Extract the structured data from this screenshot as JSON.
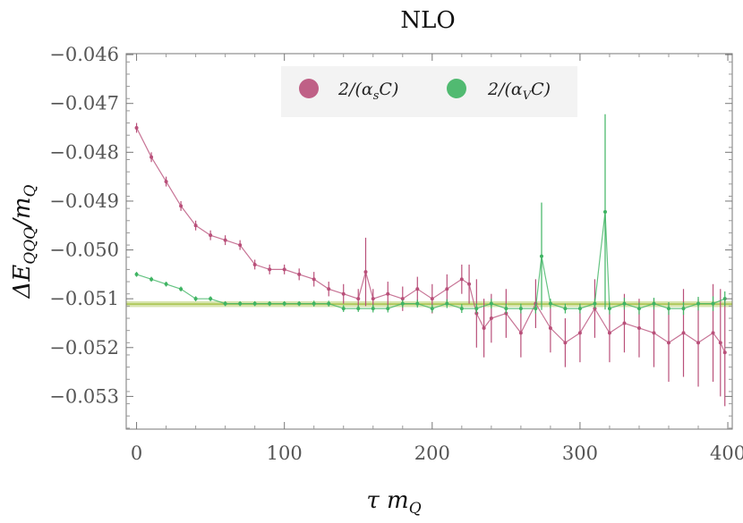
{
  "chart_data": {
    "type": "scatter",
    "title": "NLO",
    "xlabel": "τ m_Q",
    "xlabel_main": "τ m",
    "xlabel_sub": "Q",
    "ylabel": "ΔE_QQQ/m_Q",
    "ylabel_main": "ΔE",
    "ylabel_sub": "QQQ",
    "ylabel_tail": "/m",
    "ylabel_tail_sub": "Q",
    "xlim": [
      -7,
      403
    ],
    "ylim": [
      -0.05367,
      -0.04598
    ],
    "x_ticks": [
      0,
      100,
      200,
      300,
      400
    ],
    "x_tick_labels": [
      "0",
      "100",
      "200",
      "300",
      "400"
    ],
    "y_ticks": [
      -0.046,
      -0.047,
      -0.048,
      -0.049,
      -0.05,
      -0.051,
      -0.052,
      -0.053
    ],
    "y_tick_labels": [
      "−0.046",
      "−0.047",
      "−0.048",
      "−0.049",
      "−0.050",
      "−0.051",
      "−0.052",
      "−0.053"
    ],
    "legend_position": "top-center",
    "band": {
      "center": -0.05111,
      "half_width": 6e-05,
      "color": "#a7c34a"
    },
    "series": [
      {
        "name": "2/(α_s C)",
        "legend_main": "2/(α",
        "legend_sub": "s",
        "legend_tail": "C)",
        "color": "#b9507a",
        "x": [
          0,
          10,
          20,
          30,
          40,
          50,
          60,
          70,
          80,
          90,
          100,
          110,
          120,
          130,
          140,
          150,
          155,
          160,
          170,
          180,
          190,
          200,
          210,
          220,
          225,
          230,
          235,
          240,
          250,
          260,
          270,
          280,
          290,
          300,
          310,
          320,
          330,
          340,
          350,
          360,
          370,
          380,
          390,
          395,
          398
        ],
        "y": [
          -0.0475,
          -0.0481,
          -0.0486,
          -0.0491,
          -0.0495,
          -0.0497,
          -0.0498,
          -0.0499,
          -0.0503,
          -0.0504,
          -0.0504,
          -0.0505,
          -0.0506,
          -0.0508,
          -0.0509,
          -0.051,
          -0.05045,
          -0.051,
          -0.0509,
          -0.051,
          -0.0508,
          -0.051,
          -0.0508,
          -0.0506,
          -0.0507,
          -0.0513,
          -0.0516,
          -0.0514,
          -0.0513,
          -0.0517,
          -0.0511,
          -0.0516,
          -0.0519,
          -0.0517,
          -0.0512,
          -0.0517,
          -0.0515,
          -0.0516,
          -0.0517,
          -0.0519,
          -0.0517,
          -0.0519,
          -0.0517,
          -0.0519,
          -0.0521
        ],
        "err": [
          0.0001,
          0.0001,
          0.0001,
          0.0001,
          0.0001,
          0.0001,
          0.0001,
          0.0001,
          0.0001,
          0.0001,
          0.0001,
          0.00012,
          0.00015,
          0.00015,
          0.0002,
          0.0002,
          0.0007,
          0.0002,
          0.00025,
          0.00025,
          0.00025,
          0.0003,
          0.0003,
          0.0003,
          0.0004,
          0.0007,
          0.0006,
          0.0005,
          0.0005,
          0.0005,
          0.0005,
          0.0005,
          0.0005,
          0.0006,
          0.0006,
          0.0006,
          0.0006,
          0.0006,
          0.0007,
          0.0008,
          0.0009,
          0.0009,
          0.001,
          0.0011,
          0.0011
        ]
      },
      {
        "name": "2/(α_V C)",
        "legend_main": "2/(α",
        "legend_sub": "V",
        "legend_tail": "C)",
        "color": "#3fb463",
        "x": [
          0,
          10,
          20,
          30,
          40,
          50,
          60,
          70,
          80,
          90,
          100,
          110,
          120,
          130,
          140,
          150,
          160,
          170,
          180,
          190,
          200,
          210,
          220,
          230,
          240,
          250,
          260,
          270,
          274,
          280,
          290,
          300,
          310,
          317,
          320,
          330,
          340,
          350,
          360,
          370,
          380,
          390,
          398
        ],
        "y": [
          -0.0505,
          -0.0506,
          -0.0507,
          -0.0508,
          -0.051,
          -0.051,
          -0.0511,
          -0.0511,
          -0.0511,
          -0.0511,
          -0.0511,
          -0.0511,
          -0.0511,
          -0.0511,
          -0.0512,
          -0.0512,
          -0.0512,
          -0.0512,
          -0.0511,
          -0.0511,
          -0.0512,
          -0.0511,
          -0.0512,
          -0.0512,
          -0.0511,
          -0.0512,
          -0.0512,
          -0.0512,
          -0.05013,
          -0.0511,
          -0.0512,
          -0.0512,
          -0.0511,
          -0.04922,
          -0.0512,
          -0.0511,
          -0.0512,
          -0.0511,
          -0.0512,
          -0.0512,
          -0.0511,
          -0.0511,
          -0.051
        ],
        "err": [
          5e-05,
          5e-05,
          5e-05,
          5e-05,
          5e-05,
          5e-05,
          5e-05,
          5e-05,
          5e-05,
          5e-05,
          5e-05,
          5e-05,
          6e-05,
          6e-05,
          7e-05,
          7e-05,
          8e-05,
          8e-05,
          8e-05,
          8e-05,
          8e-05,
          9e-05,
          9e-05,
          0.0001,
          0.0001,
          0.0001,
          0.0001,
          0.0001,
          0.0011,
          0.0001,
          0.0001,
          0.0001,
          0.0001,
          0.002,
          0.00012,
          0.00012,
          0.00012,
          0.00012,
          0.00013,
          0.00013,
          0.00014,
          0.00015,
          0.00015
        ]
      }
    ]
  }
}
